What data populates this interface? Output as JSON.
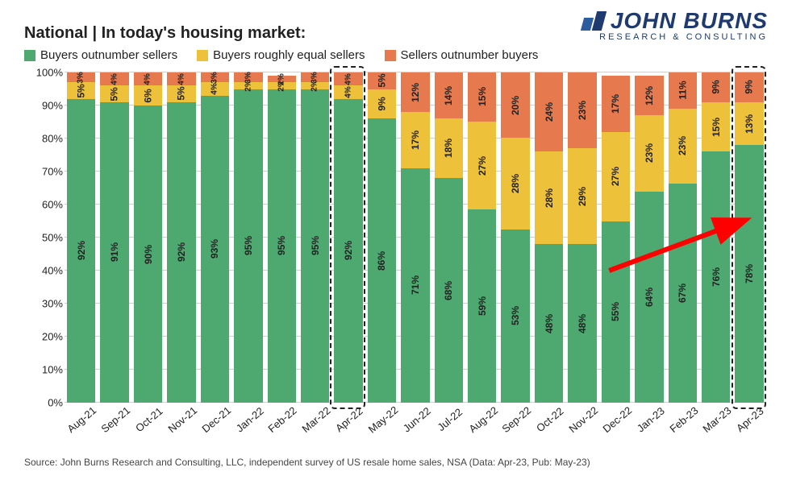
{
  "logo": {
    "main": "JOHN BURNS",
    "sub": "RESEARCH & CONSULTING",
    "bar_colors": [
      "#2b5d9f",
      "#1e3a6e"
    ]
  },
  "title": "National | In today's housing market:",
  "legend": [
    {
      "label": "Buyers outnumber sellers",
      "color": "#4ea971"
    },
    {
      "label": "Buyers roughly equal sellers",
      "color": "#eec13a"
    },
    {
      "label": "Sellers outnumber buyers",
      "color": "#e67a4e"
    }
  ],
  "chart": {
    "type": "stacked-bar",
    "ylim": [
      0,
      100
    ],
    "ytick_step": 10,
    "y_suffix": "%",
    "grid_color": "#d0d0d0",
    "background_color": "#ffffff",
    "series_colors": {
      "buyers": "#4ea971",
      "equal": "#eec13a",
      "sellers": "#e67a4e"
    },
    "label_fontsize": 12,
    "categories": [
      "Aug-21",
      "Sep-21",
      "Oct-21",
      "Nov-21",
      "Dec-21",
      "Jan-22",
      "Feb-22",
      "Mar-22",
      "Apr-22",
      "May-22",
      "Jun-22",
      "Jul-22",
      "Aug-22",
      "Sep-22",
      "Oct-22",
      "Nov-22",
      "Dec-22",
      "Jan-23",
      "Feb-23",
      "Mar-23",
      "Apr-23"
    ],
    "data": [
      {
        "buyers": 92,
        "equal": 5,
        "sellers": 3
      },
      {
        "buyers": 91,
        "equal": 5,
        "sellers": 4
      },
      {
        "buyers": 90,
        "equal": 6,
        "sellers": 4
      },
      {
        "buyers": 92,
        "equal": 5,
        "sellers": 4
      },
      {
        "buyers": 93,
        "equal": 4,
        "sellers": 3
      },
      {
        "buyers": 95,
        "equal": 2,
        "sellers": 3
      },
      {
        "buyers": 95,
        "equal": 2,
        "sellers": 2
      },
      {
        "buyers": 95,
        "equal": 2,
        "sellers": 3
      },
      {
        "buyers": 92,
        "equal": 4,
        "sellers": 4
      },
      {
        "buyers": 86,
        "equal": 9,
        "sellers": 5
      },
      {
        "buyers": 71,
        "equal": 17,
        "sellers": 12
      },
      {
        "buyers": 68,
        "equal": 18,
        "sellers": 14
      },
      {
        "buyers": 59,
        "equal": 27,
        "sellers": 15
      },
      {
        "buyers": 53,
        "equal": 28,
        "sellers": 20
      },
      {
        "buyers": 48,
        "equal": 28,
        "sellers": 24
      },
      {
        "buyers": 48,
        "equal": 29,
        "sellers": 23
      },
      {
        "buyers": 55,
        "equal": 27,
        "sellers": 17
      },
      {
        "buyers": 64,
        "equal": 23,
        "sellers": 12
      },
      {
        "buyers": 67,
        "equal": 23,
        "sellers": 11
      },
      {
        "buyers": 76,
        "equal": 15,
        "sellers": 9
      },
      {
        "buyers": 78,
        "equal": 13,
        "sellers": 9
      }
    ],
    "highlight_indices": [
      8,
      20
    ],
    "arrow": {
      "color": "#ff0000",
      "from_index": 16,
      "to_index": 20,
      "from_y": 40,
      "to_y": 55
    }
  },
  "source": "Source: John Burns Research and Consulting, LLC, independent survey of US resale home sales, NSA (Data: Apr-23, Pub: May-23)"
}
